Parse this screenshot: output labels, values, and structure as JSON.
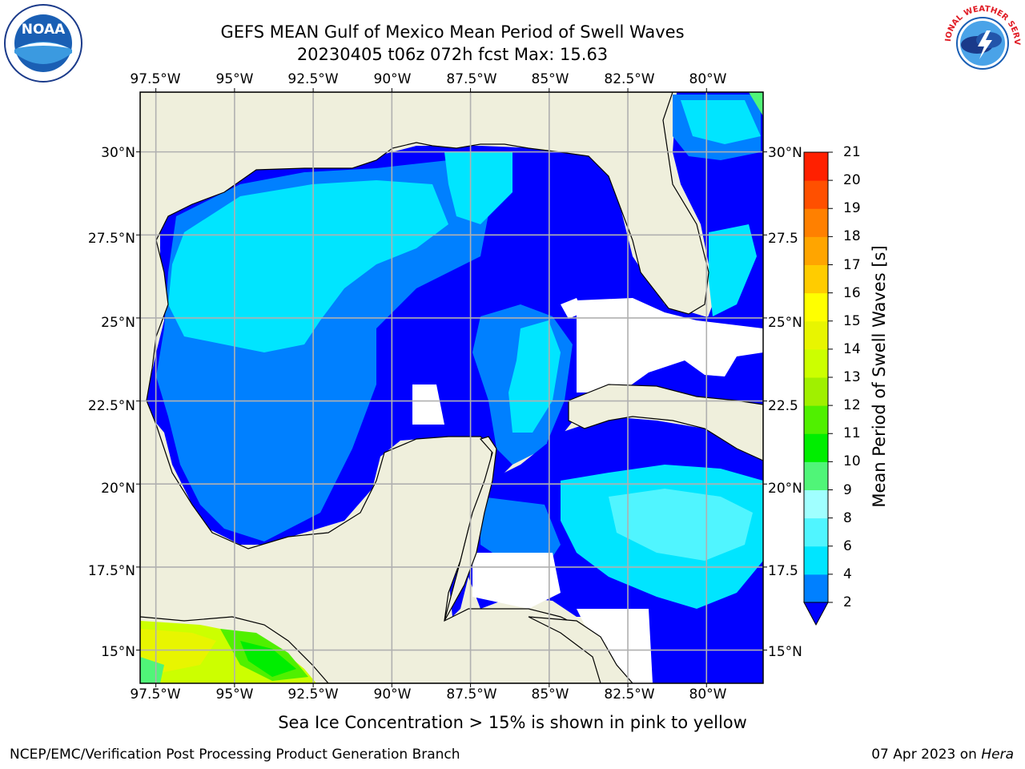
{
  "title": {
    "line1": "GEFS MEAN Gulf of Mexico Mean Period of Swell Waves",
    "line2": "20230405 t06z 072h fcst   Max: 15.63"
  },
  "logos": {
    "left_icon": "noaa-logo",
    "left_text": "NOAA",
    "right_icon": "nws-logo",
    "right_text": "NATIONAL WEATHER SERVICE"
  },
  "map": {
    "lon_ticks_top": [
      "97.5°W",
      "95°W",
      "92.5°W",
      "90°W",
      "87.5°W",
      "85°W",
      "82.5°W",
      "80°W"
    ],
    "lon_ticks_bottom": [
      "97.5°W",
      "95°W",
      "92.5°W",
      "90°W",
      "87.5°W",
      "85°W",
      "82.5°W",
      "80°W"
    ],
    "lat_ticks_left": [
      "30°N",
      "27.5°N",
      "25°N",
      "22.5°N",
      "20°N",
      "17.5°N",
      "15°N"
    ],
    "lat_ticks_right": [
      "30°N",
      "27.5",
      "25°N",
      "22.5",
      "20°N",
      "17.5",
      "15°N"
    ],
    "lon_range": [
      -98,
      -78.2
    ],
    "lat_range": [
      14,
      31.8
    ],
    "land_color": "#efefdc",
    "grid_color": "#b0b0b0"
  },
  "colorbar": {
    "label": "Mean Period of Swell Waves [s]",
    "ticks": [
      "2",
      "4",
      "6",
      "8",
      "9",
      "10",
      "11",
      "12",
      "13",
      "14",
      "15",
      "16",
      "17",
      "18",
      "19",
      "20",
      "21"
    ],
    "tick_values": [
      2,
      4,
      6,
      8,
      9,
      10,
      11,
      12,
      13,
      14,
      15,
      16,
      17,
      18,
      19,
      20,
      21
    ],
    "colors": [
      "#0000ff",
      "#0080ff",
      "#00e5ff",
      "#50f5ff",
      "#a0ffff",
      "#50f578",
      "#00ee00",
      "#50f000",
      "#a0f000",
      "#ccff00",
      "#e8f500",
      "#ffff00",
      "#ffcc00",
      "#ffa500",
      "#ff8000",
      "#ff5000",
      "#ff2000",
      "#ff0000"
    ],
    "extend": "min"
  },
  "caption": "Sea Ice Concentration > 15% is shown in pink to yellow",
  "footer": {
    "left": "NCEP/EMC/Verification Post Processing Product Generation Branch",
    "right_prefix": "07 Apr 2023 on ",
    "right_machine": "Hera"
  }
}
